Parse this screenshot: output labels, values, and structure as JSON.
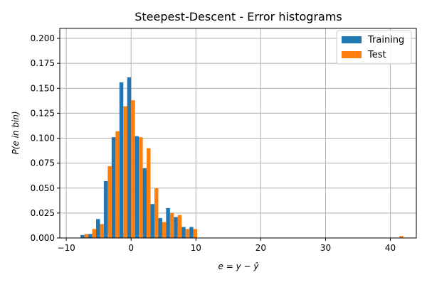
{
  "chart_data": {
    "type": "bar",
    "title": "Steepest-Descent - Error histograms",
    "xlabel": "e = y − ŷ",
    "ylabel": "P(e in bin)",
    "xlim": [
      -11,
      44
    ],
    "ylim": [
      0,
      0.21
    ],
    "xticks": [
      -10,
      0,
      10,
      20,
      30,
      40
    ],
    "xtick_labels": [
      "−10",
      "0",
      "10",
      "20",
      "30",
      "40"
    ],
    "yticks": [
      0,
      0.025,
      0.05,
      0.075,
      0.1,
      0.125,
      0.15,
      0.175,
      0.2
    ],
    "ytick_labels": [
      "0.000",
      "0.025",
      "0.050",
      "0.075",
      "0.100",
      "0.125",
      "0.150",
      "0.175",
      "0.200"
    ],
    "grid": true,
    "legend_position": "top-right",
    "bar_group_width": 1.2,
    "series": [
      {
        "name": "Training",
        "color": "#1f77b4",
        "x": [
          -7.8,
          -6.6,
          -5.4,
          -4.2,
          -3.0,
          -1.8,
          -0.6,
          0.6,
          1.8,
          3.0,
          4.2,
          5.4,
          6.6,
          7.8,
          9.0
        ],
        "values": [
          0.003,
          0.004,
          0.019,
          0.057,
          0.101,
          0.156,
          0.161,
          0.102,
          0.07,
          0.034,
          0.02,
          0.03,
          0.021,
          0.011,
          0.011
        ]
      },
      {
        "name": "Test",
        "color": "#ff7f0e",
        "x": [
          -7.8,
          -6.6,
          -5.4,
          -4.2,
          -3.0,
          -1.8,
          -0.6,
          0.6,
          1.8,
          3.0,
          4.2,
          5.4,
          6.6,
          7.8,
          9.0,
          40.8
        ],
        "values": [
          0.004,
          0.009,
          0.014,
          0.072,
          0.107,
          0.132,
          0.138,
          0.101,
          0.09,
          0.05,
          0.016,
          0.025,
          0.023,
          0.009,
          0.009,
          0.002
        ]
      }
    ]
  }
}
